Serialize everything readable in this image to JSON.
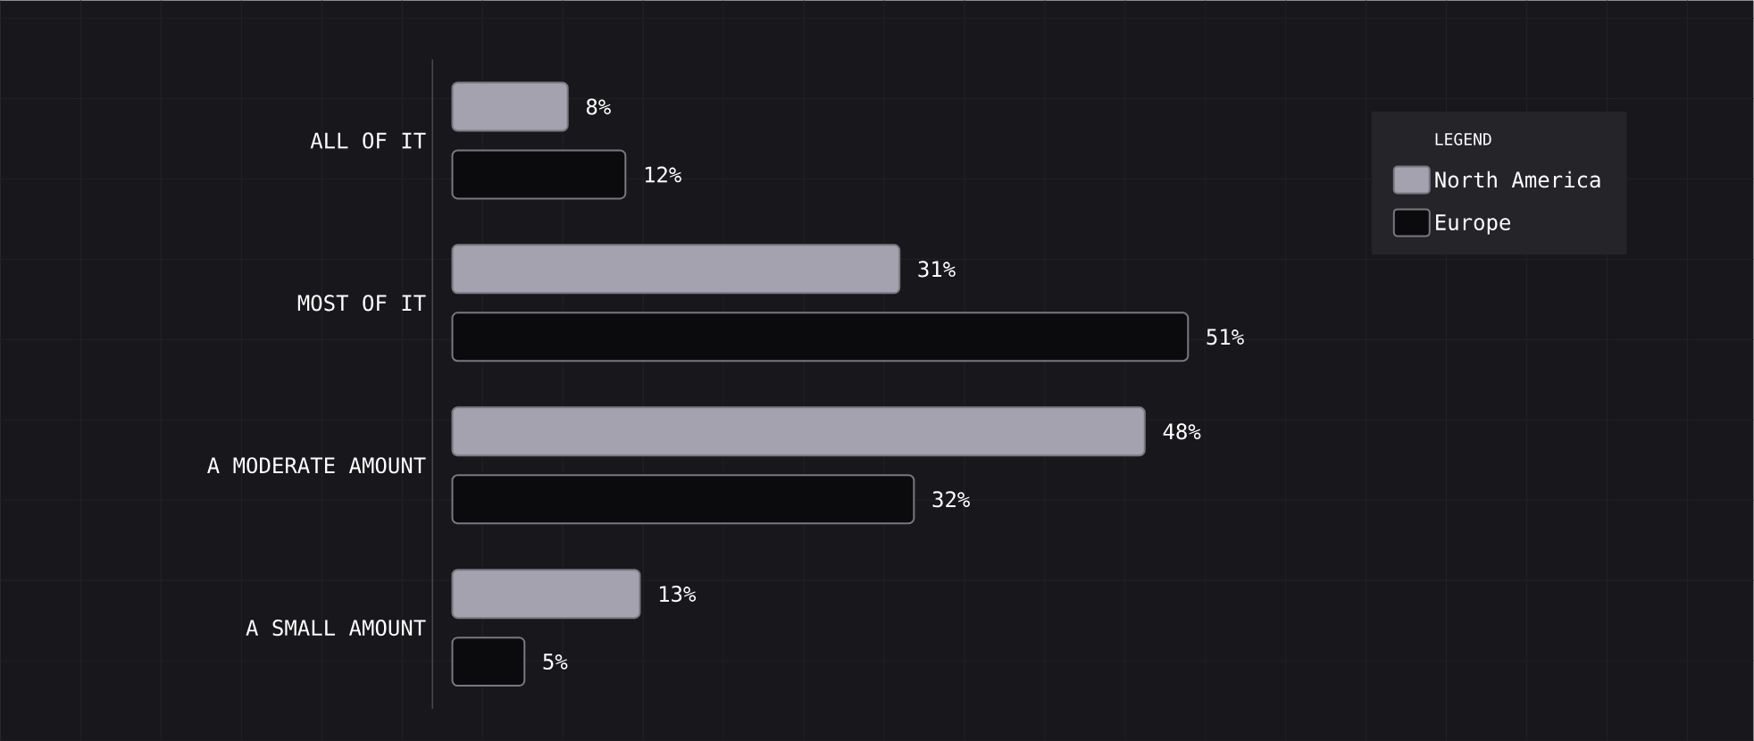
{
  "chart_data": {
    "type": "bar",
    "orientation": "horizontal",
    "legend_title": "LEGEND",
    "legend": "right",
    "categories": [
      "ALL OF IT",
      "MOST OF IT",
      "A MODERATE AMOUNT",
      "A SMALL AMOUNT"
    ],
    "series": [
      {
        "name": "North America",
        "color": "#a3a2ae",
        "values": [
          8,
          31,
          48,
          13
        ],
        "value_labels": [
          "8%",
          "31%",
          "48%",
          "13%"
        ]
      },
      {
        "name": "Europe",
        "color": "#0b0b0d",
        "values": [
          12,
          51,
          32,
          5
        ],
        "value_labels": [
          "12%",
          "51%",
          "32%",
          "5%"
        ]
      }
    ]
  }
}
